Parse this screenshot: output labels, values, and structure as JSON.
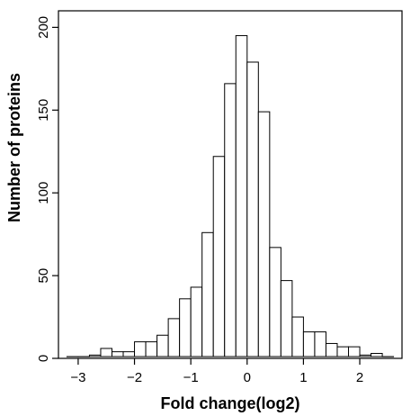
{
  "chart_data": {
    "type": "bar",
    "title": "",
    "xlabel": "Fold change(log2)",
    "ylabel": "Number of proteins",
    "xlim": [
      -3.35,
      2.75
    ],
    "ylim": [
      0,
      210
    ],
    "xticks": [
      -3,
      -2,
      -1,
      0,
      1,
      2
    ],
    "xtick_labels": [
      "−3",
      "−2",
      "−1",
      "0",
      "1",
      "2"
    ],
    "yticks": [
      0,
      50,
      100,
      150,
      200
    ],
    "ytick_labels": [
      "0",
      "50",
      "100",
      "150",
      "200"
    ],
    "grid": false,
    "bin_width": 0.2,
    "bins": [
      {
        "x0": -3.2,
        "x1": -3.0,
        "value": 1
      },
      {
        "x0": -3.0,
        "x1": -2.8,
        "value": 1
      },
      {
        "x0": -2.8,
        "x1": -2.6,
        "value": 2
      },
      {
        "x0": -2.6,
        "x1": -2.4,
        "value": 6
      },
      {
        "x0": -2.4,
        "x1": -2.2,
        "value": 4
      },
      {
        "x0": -2.2,
        "x1": -2.0,
        "value": 4
      },
      {
        "x0": -2.0,
        "x1": -1.8,
        "value": 10
      },
      {
        "x0": -1.8,
        "x1": -1.6,
        "value": 10
      },
      {
        "x0": -1.6,
        "x1": -1.4,
        "value": 14
      },
      {
        "x0": -1.4,
        "x1": -1.2,
        "value": 24
      },
      {
        "x0": -1.2,
        "x1": -1.0,
        "value": 36
      },
      {
        "x0": -1.0,
        "x1": -0.8,
        "value": 43
      },
      {
        "x0": -0.8,
        "x1": -0.6,
        "value": 76
      },
      {
        "x0": -0.6,
        "x1": -0.4,
        "value": 122
      },
      {
        "x0": -0.4,
        "x1": -0.2,
        "value": 166
      },
      {
        "x0": -0.2,
        "x1": 0.0,
        "value": 195
      },
      {
        "x0": 0.0,
        "x1": 0.2,
        "value": 179
      },
      {
        "x0": 0.2,
        "x1": 0.4,
        "value": 149
      },
      {
        "x0": 0.4,
        "x1": 0.6,
        "value": 67
      },
      {
        "x0": 0.6,
        "x1": 0.8,
        "value": 47
      },
      {
        "x0": 0.8,
        "x1": 1.0,
        "value": 25
      },
      {
        "x0": 1.0,
        "x1": 1.2,
        "value": 16
      },
      {
        "x0": 1.2,
        "x1": 1.4,
        "value": 16
      },
      {
        "x0": 1.4,
        "x1": 1.6,
        "value": 9
      },
      {
        "x0": 1.6,
        "x1": 1.8,
        "value": 7
      },
      {
        "x0": 1.8,
        "x1": 2.0,
        "value": 7
      },
      {
        "x0": 2.0,
        "x1": 2.2,
        "value": 2
      },
      {
        "x0": 2.2,
        "x1": 2.4,
        "value": 3
      },
      {
        "x0": 2.4,
        "x1": 2.6,
        "value": 1
      }
    ],
    "colors": {
      "bar_fill": "#ffffff",
      "bar_stroke": "#000000",
      "axis": "#000000"
    }
  }
}
